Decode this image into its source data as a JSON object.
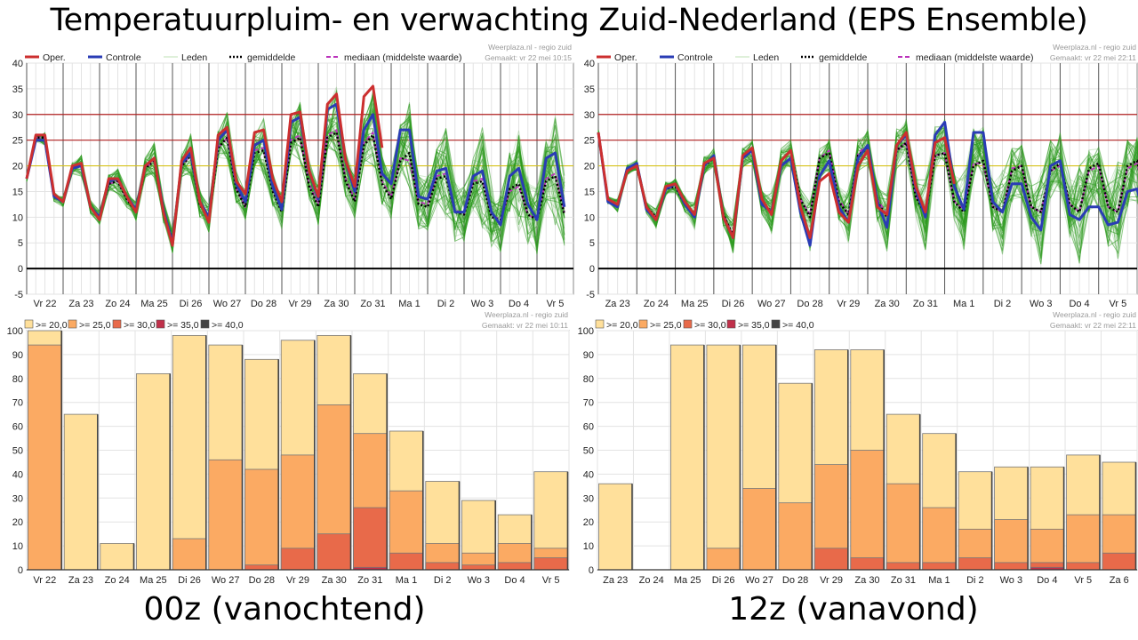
{
  "title": "Temperatuurpluim- en verwachting Zuid-Nederland (EPS Ensemble)",
  "captions": {
    "left": "00z (vanochtend)",
    "right": "12z (vanavond)"
  },
  "colors": {
    "oper": "#cc2f2f",
    "controle": "#2a3cb5",
    "leden": "#2e9a1f",
    "gemiddelde": "#000000",
    "mediaan": "#bb33bb",
    "ref_red": "#b02020",
    "ref_yellow": "#d6c21a",
    "zero": "#000000",
    "bin20": "#ffe09b",
    "bin25": "#fbaa63",
    "bin30": "#e86a4a",
    "bin35": "#c0304a",
    "bin40": "#444444"
  },
  "chart_data": [
    {
      "id": "plume-00z",
      "type": "line",
      "title": "",
      "watermark": "Weerplaza.nl - regio zuid",
      "made": "Gemaakt: vr 22 mei 10:15",
      "legend": [
        "Oper.",
        "Controle",
        "Leden",
        "gemiddelde",
        "mediaan (middelste waarde)"
      ],
      "ylim": [
        -5,
        40
      ],
      "yticks": [
        -5,
        0,
        5,
        10,
        15,
        20,
        25,
        30,
        35,
        40
      ],
      "days": [
        "Vr 22",
        "Za 23",
        "Zo 24",
        "Ma 25",
        "Di 26",
        "Wo 27",
        "Do 28",
        "Vr 29",
        "Za 30",
        "Zo 31",
        "Ma 1",
        "Di 2",
        "Wo 3",
        "Do 4",
        "Vr 5"
      ],
      "reference_lines": [
        30,
        25,
        20,
        0
      ],
      "x_step_days": 0.25,
      "series": [
        {
          "name": "Oper.",
          "values": [
            17.5,
            26,
            26,
            14.5,
            13,
            20,
            20.5,
            12,
            9.5,
            17.5,
            17.5,
            14,
            11,
            20,
            21.5,
            11,
            4.5,
            21,
            23.5,
            13,
            9,
            26,
            27.5,
            17,
            14.5,
            26.5,
            27,
            17.5,
            13,
            30,
            30.5,
            19,
            14,
            32,
            34,
            21,
            16,
            33.5,
            35.5,
            23.5
          ]
        },
        {
          "name": "Controle",
          "values": [
            17.5,
            25,
            25,
            14,
            13,
            19.5,
            20,
            12,
            10,
            17,
            17.5,
            14,
            11.5,
            20,
            21.5,
            11.5,
            5,
            20.5,
            22.5,
            13,
            10,
            25,
            27,
            16.5,
            13,
            24,
            25,
            16,
            11.5,
            28.5,
            29.5,
            19,
            13.5,
            31,
            32,
            21,
            15,
            27,
            30,
            18.5,
            16.5,
            27,
            27,
            14,
            13.5,
            19,
            19.5,
            11,
            11,
            18,
            19,
            11,
            8.5,
            18,
            19.5,
            12.5,
            9.5,
            21.5,
            22.5,
            12
          ]
        },
        {
          "name": "gemiddelde",
          "values": [
            17.5,
            25.5,
            25.5,
            14,
            13,
            19.5,
            20,
            12,
            10,
            16.5,
            17,
            13.5,
            11,
            19.5,
            21,
            11,
            5.5,
            20,
            22,
            12.5,
            9.5,
            23.5,
            25.5,
            15.5,
            12,
            22.5,
            23,
            15,
            11,
            24.5,
            25.5,
            16,
            12,
            25.5,
            26.5,
            17,
            13,
            24,
            26,
            16.5,
            13.5,
            21,
            22.5,
            12.5,
            12,
            17.5,
            18,
            11,
            10.5,
            16.5,
            17,
            10,
            9.5,
            15.5,
            16.5,
            10.5,
            9.5,
            17,
            18,
            10.5
          ]
        },
        {
          "name": "mediaan (middelste waarde)",
          "values": [
            17.5,
            25.5,
            25.5,
            14,
            13,
            19.5,
            20,
            12,
            10,
            16.5,
            17,
            13.5,
            11,
            19.5,
            21,
            11,
            5.5,
            20,
            22,
            12.5,
            9.5,
            23.5,
            25.5,
            15.5,
            12,
            23,
            23.5,
            15.5,
            11.5,
            25,
            26,
            16.5,
            12.5,
            26,
            27,
            17.5,
            13.5,
            24.5,
            26.5,
            17,
            14,
            21.5,
            21,
            13,
            12.5,
            18,
            18.5,
            11.5,
            10.5,
            17,
            17.5,
            10.5,
            9.5,
            15,
            16,
            10.5,
            9.5,
            17.5,
            18.5,
            11
          ]
        }
      ]
    },
    {
      "id": "plume-12z",
      "type": "line",
      "title": "",
      "watermark": "Weerplaza.nl - regio zuid",
      "made": "Gemaakt: vr 22 mei 22:11",
      "legend": [
        "Oper.",
        "Controle",
        "Leden",
        "gemiddelde",
        "mediaan (middelste waarde)"
      ],
      "ylim": [
        -5,
        40
      ],
      "yticks": [
        -5,
        0,
        5,
        10,
        15,
        20,
        25,
        30,
        35,
        40
      ],
      "days": [
        "Za 23",
        "Zo 24",
        "Ma 25",
        "Di 26",
        "Wo 27",
        "Do 28",
        "Vr 29",
        "Za 30",
        "Zo 31",
        "Ma 1",
        "Di 2",
        "Wo 3",
        "Do 4",
        "Vr 5"
      ],
      "reference_lines": [
        30,
        25,
        20,
        0
      ],
      "x_step_days": 0.25,
      "series": [
        {
          "name": "Oper.",
          "values": [
            26.5,
            13.5,
            12.5,
            19,
            20,
            12,
            9.5,
            16,
            16.5,
            13,
            10.5,
            20.5,
            21.5,
            10,
            6,
            22,
            23.5,
            13.5,
            10.5,
            21,
            23,
            12,
            6,
            17,
            18.5,
            11,
            9,
            20,
            23,
            12,
            10.5,
            24,
            26.5,
            16,
            11,
            24.5,
            25.5,
            16.5
          ]
        },
        {
          "name": "Controle",
          "values": [
            26.5,
            13,
            12,
            19.5,
            20.5,
            11.5,
            9.5,
            15.5,
            16.5,
            12.5,
            10,
            20,
            22,
            10,
            6,
            21.5,
            23,
            12.5,
            11,
            20,
            21.5,
            11,
            4.5,
            18,
            21,
            12,
            9,
            21.5,
            24,
            13,
            8,
            24,
            26,
            15.5,
            10,
            26,
            28.5,
            16,
            11.5,
            26.5,
            26.5,
            13,
            11,
            16.5,
            16.5,
            10,
            7.5,
            20,
            21,
            10.5,
            9.5,
            12,
            12,
            8.5,
            9,
            15,
            15.5,
            8.5,
            7,
            18.5
          ]
        },
        {
          "name": "gemiddelde",
          "values": [
            26.5,
            13.5,
            12.5,
            19,
            20,
            12,
            10,
            15.5,
            16,
            12.5,
            10.5,
            20,
            21.5,
            10.5,
            6.5,
            21.5,
            23,
            13,
            11,
            21,
            23,
            13.5,
            10,
            21.5,
            22.5,
            13,
            10.5,
            22,
            23.5,
            13,
            10,
            23,
            24.5,
            14,
            10.5,
            22,
            22.5,
            13,
            11,
            20,
            21,
            12,
            11,
            19,
            20,
            12,
            11,
            19,
            20.5,
            12.5,
            11,
            19.5,
            20.5,
            12,
            11,
            20,
            21,
            12.5,
            11,
            19.5
          ]
        },
        {
          "name": "mediaan (middelste waarde)",
          "values": [
            26.5,
            13.5,
            12.5,
            19,
            20,
            12,
            10,
            15.5,
            16,
            12.5,
            10.5,
            20,
            21.5,
            10.5,
            6.5,
            21.5,
            23,
            13,
            11,
            21,
            23,
            13.5,
            10.5,
            21.5,
            23,
            13.5,
            10.5,
            22.5,
            24,
            13.5,
            10.5,
            23,
            24.5,
            14,
            11,
            22,
            22.5,
            13,
            11.5,
            20.5,
            20.5,
            12,
            11,
            19.5,
            20,
            12,
            11,
            19,
            20,
            12.5,
            11,
            19,
            20,
            12,
            11,
            19.5,
            20.5,
            12.5,
            11,
            19
          ]
        }
      ]
    },
    {
      "id": "bars-00z",
      "type": "bar",
      "title": "",
      "watermark": "Weerplaza.nl - regio zuid",
      "made": "Gemaakt: vr 22 mei 10:11",
      "legend": [
        ">= 20,0",
        ">= 25,0",
        ">= 30,0",
        ">= 35,0",
        ">= 40,0"
      ],
      "ylim": [
        0,
        100
      ],
      "yticks": [
        0,
        10,
        20,
        30,
        40,
        50,
        60,
        70,
        80,
        90,
        100
      ],
      "categories": [
        "Vr 22",
        "Za 23",
        "Zo 24",
        "Ma 25",
        "Di 26",
        "Wo 27",
        "Do 28",
        "Vr 29",
        "Za 30",
        "Zo 31",
        "Ma 1",
        "Di 2",
        "Wo 3",
        "Do 4",
        "Vr 5"
      ],
      "series": [
        {
          "name": ">= 20,0",
          "values": [
            100,
            65,
            11,
            82,
            98,
            94,
            88,
            96,
            98,
            82,
            58,
            37,
            29,
            23,
            41
          ]
        },
        {
          "name": ">= 25,0",
          "values": [
            94,
            0,
            0,
            0,
            13,
            46,
            42,
            48,
            69,
            57,
            33,
            11,
            7,
            11,
            9
          ]
        },
        {
          "name": ">= 30,0",
          "values": [
            0,
            0,
            0,
            0,
            0,
            0,
            2,
            9,
            15,
            26,
            7,
            3,
            2,
            3,
            5
          ]
        },
        {
          "name": ">= 35,0",
          "values": [
            0,
            0,
            0,
            0,
            0,
            0,
            0,
            0,
            0,
            1,
            0,
            0,
            0,
            0,
            0
          ]
        },
        {
          "name": ">= 40,0",
          "values": [
            0,
            0,
            0,
            0,
            0,
            0,
            0,
            0,
            0,
            0,
            0,
            0,
            0,
            0,
            0
          ]
        }
      ]
    },
    {
      "id": "bars-12z",
      "type": "bar",
      "title": "",
      "watermark": "Weerplaza.nl - regio zuid",
      "made": "Gemaakt: vr 22 mei 22:11",
      "legend": [
        ">= 20,0",
        ">= 25,0",
        ">= 30,0",
        ">= 35,0",
        ">= 40,0"
      ],
      "ylim": [
        0,
        100
      ],
      "yticks": [
        0,
        10,
        20,
        30,
        40,
        50,
        60,
        70,
        80,
        90,
        100
      ],
      "categories": [
        "Za 23",
        "Zo 24",
        "Ma 25",
        "Di 26",
        "Wo 27",
        "Do 28",
        "Vr 29",
        "Za 30",
        "Zo 31",
        "Ma 1",
        "Di 2",
        "Wo 3",
        "Do 4",
        "Vr 5",
        "Za 6"
      ],
      "series": [
        {
          "name": ">= 20,0",
          "values": [
            36,
            0,
            94,
            94,
            94,
            78,
            92,
            92,
            65,
            57,
            41,
            43,
            43,
            48,
            45
          ]
        },
        {
          "name": ">= 25,0",
          "values": [
            0,
            0,
            0,
            9,
            34,
            28,
            44,
            50,
            36,
            26,
            17,
            21,
            17,
            23,
            23
          ]
        },
        {
          "name": ">= 30,0",
          "values": [
            0,
            0,
            0,
            0,
            0,
            0,
            9,
            5,
            3,
            3,
            5,
            3,
            3,
            3,
            7
          ]
        },
        {
          "name": ">= 35,0",
          "values": [
            0,
            0,
            0,
            0,
            0,
            0,
            0,
            0,
            0,
            0,
            0,
            0,
            1,
            0,
            0
          ]
        },
        {
          "name": ">= 40,0",
          "values": [
            0,
            0,
            0,
            0,
            0,
            0,
            0,
            0,
            0,
            0,
            0,
            0,
            0,
            0,
            0
          ]
        }
      ]
    }
  ]
}
